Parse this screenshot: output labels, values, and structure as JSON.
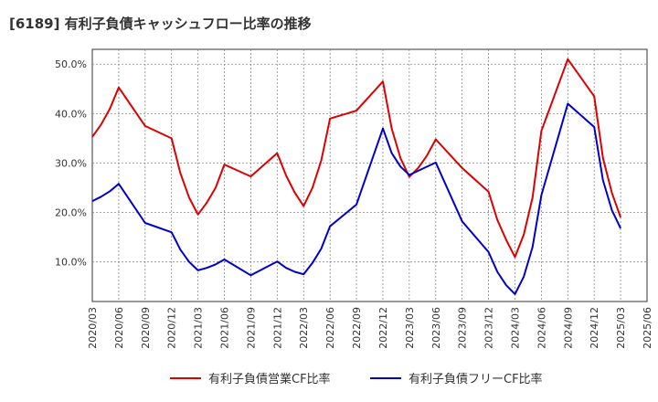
{
  "chart_data": {
    "type": "line",
    "title": "[6189]  有利子負債キャッシュフロー比率の推移",
    "xlabel": "",
    "ylabel": "",
    "ylim": [
      2,
      53
    ],
    "yticks": [
      10,
      20,
      30,
      40,
      50
    ],
    "ytick_labels": [
      "10.0%",
      "20.0%",
      "30.0%",
      "40.0%",
      "50.0%"
    ],
    "xticks": [
      "2020/03",
      "2020/06",
      "2020/09",
      "2020/12",
      "2021/03",
      "2021/06",
      "2021/09",
      "2021/12",
      "2022/03",
      "2022/06",
      "2022/09",
      "2022/12",
      "2023/03",
      "2023/06",
      "2023/09",
      "2023/12",
      "2024/03",
      "2024/06",
      "2024/09",
      "2024/12",
      "2025/03",
      "2025/06"
    ],
    "grid": true,
    "legend_position": "bottom",
    "series": [
      {
        "name": "有利子負債営業CF比率",
        "color": "#dd0000",
        "points": [
          [
            "2020/03",
            35.3
          ],
          [
            "2020/04",
            37.8
          ],
          [
            "2020/05",
            41.0
          ],
          [
            "2020/06",
            45.3
          ],
          [
            "2020/09",
            37.5
          ],
          [
            "2020/12",
            35.0
          ],
          [
            "2021/01",
            28.0
          ],
          [
            "2021/02",
            23.0
          ],
          [
            "2021/03",
            19.6
          ],
          [
            "2021/04",
            22.0
          ],
          [
            "2021/05",
            25.0
          ],
          [
            "2021/06",
            29.7
          ],
          [
            "2021/09",
            27.3
          ],
          [
            "2021/12",
            32.0
          ],
          [
            "2022/01",
            27.5
          ],
          [
            "2022/02",
            24.0
          ],
          [
            "2022/03",
            21.3
          ],
          [
            "2022/04",
            25.0
          ],
          [
            "2022/05",
            30.5
          ],
          [
            "2022/06",
            39.0
          ],
          [
            "2022/09",
            40.6
          ],
          [
            "2022/12",
            46.5
          ],
          [
            "2023/01",
            37.0
          ],
          [
            "2023/02",
            31.0
          ],
          [
            "2023/03",
            27.2
          ],
          [
            "2023/04",
            29.0
          ],
          [
            "2023/05",
            31.5
          ],
          [
            "2023/06",
            34.8
          ],
          [
            "2023/09",
            29.0
          ],
          [
            "2023/12",
            24.2
          ],
          [
            "2024/01",
            18.5
          ],
          [
            "2024/02",
            14.5
          ],
          [
            "2024/03",
            11.0
          ],
          [
            "2024/04",
            15.5
          ],
          [
            "2024/05",
            23.0
          ],
          [
            "2024/06",
            36.5
          ],
          [
            "2024/09",
            51.0
          ],
          [
            "2024/12",
            43.5
          ],
          [
            "2025/01",
            31.0
          ],
          [
            "2025/02",
            24.0
          ],
          [
            "2025/03",
            19.0
          ]
        ]
      },
      {
        "name": "有利子負債フリーCF比率",
        "color": "#0000cc",
        "points": [
          [
            "2020/03",
            22.3
          ],
          [
            "2020/04",
            23.2
          ],
          [
            "2020/05",
            24.3
          ],
          [
            "2020/06",
            25.8
          ],
          [
            "2020/09",
            17.9
          ],
          [
            "2020/12",
            16.0
          ],
          [
            "2021/01",
            12.5
          ],
          [
            "2021/02",
            10.0
          ],
          [
            "2021/03",
            8.3
          ],
          [
            "2021/04",
            8.8
          ],
          [
            "2021/05",
            9.5
          ],
          [
            "2021/06",
            10.5
          ],
          [
            "2021/09",
            7.3
          ],
          [
            "2021/12",
            10.1
          ],
          [
            "2022/01",
            8.8
          ],
          [
            "2022/02",
            8.0
          ],
          [
            "2022/03",
            7.5
          ],
          [
            "2022/04",
            9.8
          ],
          [
            "2022/05",
            12.7
          ],
          [
            "2022/06",
            17.2
          ],
          [
            "2022/09",
            21.6
          ],
          [
            "2022/12",
            37.0
          ],
          [
            "2023/01",
            32.0
          ],
          [
            "2023/02",
            29.3
          ],
          [
            "2023/03",
            27.6
          ],
          [
            "2023/06",
            30.1
          ],
          [
            "2023/09",
            18.2
          ],
          [
            "2023/12",
            12.0
          ],
          [
            "2024/01",
            8.0
          ],
          [
            "2024/02",
            5.3
          ],
          [
            "2024/03",
            3.5
          ],
          [
            "2024/04",
            7.0
          ],
          [
            "2024/05",
            13.0
          ],
          [
            "2024/06",
            23.5
          ],
          [
            "2024/09",
            42.0
          ],
          [
            "2024/12",
            37.3
          ],
          [
            "2025/01",
            26.5
          ],
          [
            "2025/02",
            20.5
          ],
          [
            "2025/03",
            16.8
          ]
        ]
      }
    ]
  }
}
